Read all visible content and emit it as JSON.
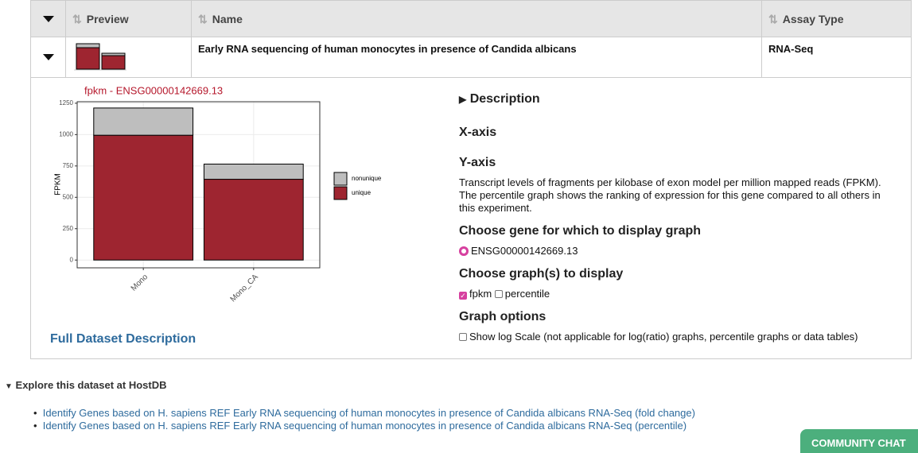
{
  "table": {
    "columns": [
      "Preview",
      "Name",
      "Assay Type"
    ],
    "rows": [
      {
        "name": "Early RNA sequencing of human monocytes in presence of Candida albicans",
        "assay_type": "RNA-Seq"
      }
    ]
  },
  "chart_data": {
    "type": "bar",
    "stacked": true,
    "title": "fpkm - ENSG00000142669.13",
    "y_label": "FPKM",
    "categories": [
      "Mono",
      "Mono_CA"
    ],
    "series": [
      {
        "name": "unique",
        "color": "#9e2530",
        "values": [
          995,
          644
        ]
      },
      {
        "name": "nonunique",
        "color": "#bebebe",
        "values": [
          217,
          121
        ]
      }
    ],
    "ylim": [
      -62,
      1262
    ],
    "yticks": [
      0,
      250,
      500,
      750,
      1000,
      1250
    ],
    "grid": true,
    "legend": "right"
  },
  "details": {
    "description": "Description",
    "x_axis": "X-axis",
    "y_axis": "Y-axis",
    "y_axis_text": "Transcript levels of fragments per kilobase of exon model per million mapped reads (FPKM). The percentile graph shows the ranking of expression for this gene compared to all others in this experiment.",
    "choose_gene": "Choose gene for which to display graph",
    "gene_option": "ENSG00000142669.13",
    "choose_graphs": "Choose graph(s) to display",
    "graph_choices": [
      "fpkm",
      "percentile"
    ],
    "graph_options": "Graph options",
    "log_scale": "Show log Scale (not applicable for log(ratio) graphs, percentile graphs or data tables)",
    "full_dataset": "Full Dataset Description"
  },
  "explore": {
    "title": "Explore this dataset at HostDB",
    "links": [
      "Identify Genes based on H. sapiens REF Early RNA sequencing of human monocytes in presence of Candida albicans RNA-Seq (fold change)",
      "Identify Genes based on H. sapiens REF Early RNA sequencing of human monocytes in presence of Candida albicans RNA-Seq (percentile)"
    ]
  },
  "chat_button": "COMMUNITY CHAT"
}
